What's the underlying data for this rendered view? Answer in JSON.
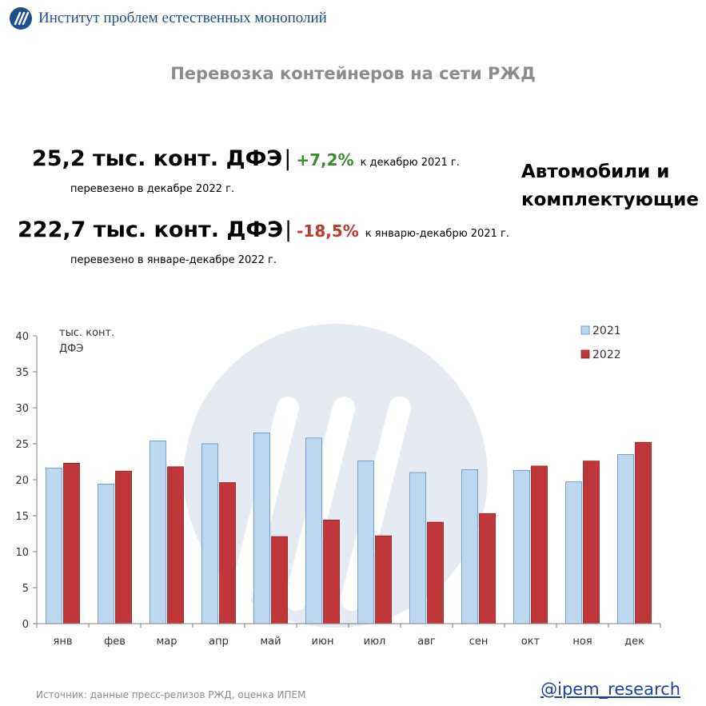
{
  "header": {
    "org_name": "Институт проблем естественных монополий"
  },
  "title": "Перевозка контейнеров на сети РЖД",
  "stats": [
    {
      "value": "25,2 тыс. конт. ДФЭ",
      "change": "+7,2%",
      "change_color": "#3a8a2e",
      "compare": "к декабрю 2021 г.",
      "sub": "перевезено в декабре 2022 г."
    },
    {
      "value": "222,7 тыс. конт. ДФЭ",
      "change": "-18,5%",
      "change_color": "#c0392b",
      "compare": "к январю-декабрю 2021 г.",
      "sub": "перевезено в январе-декабре 2022 г."
    }
  ],
  "category_title_line1": "Автомобили и",
  "category_title_line2": "комплектующие",
  "chart_data": {
    "type": "bar",
    "categories": [
      "янв",
      "фев",
      "мар",
      "апр",
      "май",
      "июн",
      "июл",
      "авг",
      "сен",
      "окт",
      "ноя",
      "дек"
    ],
    "series": [
      {
        "name": "2021",
        "color": "#bdd7f0",
        "values": [
          21.6,
          19.4,
          25.4,
          25.0,
          26.5,
          25.8,
          22.6,
          21.0,
          21.4,
          21.3,
          19.7,
          23.5
        ]
      },
      {
        "name": "2022",
        "color": "#c0373b",
        "values": [
          22.3,
          21.2,
          21.8,
          19.6,
          12.1,
          14.4,
          12.2,
          14.1,
          15.3,
          21.9,
          22.6,
          25.2
        ]
      }
    ],
    "ylim": [
      0,
      40
    ],
    "yticks": [
      0,
      5,
      10,
      15,
      20,
      25,
      30,
      35,
      40
    ],
    "ylabel_line1": "тыс. конт.",
    "ylabel_line2": "ДФЭ",
    "legend_position": "top-right",
    "grid": false
  },
  "footer": {
    "source": "Источник: данные пресс-релизов РЖД, оценка ИПЕМ",
    "link": "@ipem_research"
  }
}
